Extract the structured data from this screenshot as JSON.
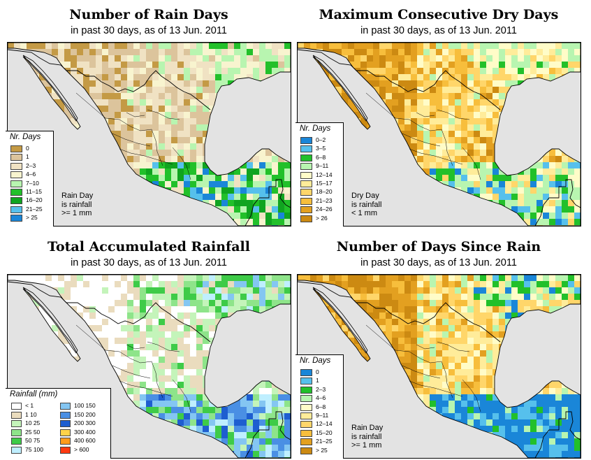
{
  "panels": [
    {
      "id": "rain-days",
      "title": "Number of Rain Days",
      "subtitle": "in past 30 days, as of  13 Jun. 2011",
      "map_style": "rain-days",
      "legend": {
        "title": "Nr. Days",
        "items": [
          {
            "label": "0",
            "color": "#c49a45"
          },
          {
            "label": "1",
            "color": "#dcc49c"
          },
          {
            "label": "2–3",
            "color": "#f0e2c3"
          },
          {
            "label": "4–6",
            "color": "#f8f4cf"
          },
          {
            "label": "7–10",
            "color": "#b8f5b0"
          },
          {
            "label": "11–15",
            "color": "#22c02a"
          },
          {
            "label": "16–20",
            "color": "#10a420"
          },
          {
            "label": "21–25",
            "color": "#56c0ec"
          },
          {
            "label": "> 25",
            "color": "#1a86d8"
          }
        ]
      },
      "note": [
        "Rain Day",
        "is rainfall",
        ">= 1 mm"
      ]
    },
    {
      "id": "max-dry-days",
      "title": "Maximum Consecutive Dry Days",
      "subtitle": "in past 30 days, as of  13 Jun. 2011",
      "map_style": "dry-days",
      "legend": {
        "title": "Nr. Days",
        "items": [
          {
            "label": "0–2",
            "color": "#1a86d8"
          },
          {
            "label": "3–5",
            "color": "#56c0ec"
          },
          {
            "label": "6–8",
            "color": "#22c02a"
          },
          {
            "label": "9–11",
            "color": "#b8f5b0"
          },
          {
            "label": "12–14",
            "color": "#fffcc8"
          },
          {
            "label": "15–17",
            "color": "#ffec9a"
          },
          {
            "label": "18–20",
            "color": "#ffd66a"
          },
          {
            "label": "21–23",
            "color": "#f7be3c"
          },
          {
            "label": "24–26",
            "color": "#e3a020"
          },
          {
            "label": "> 26",
            "color": "#cc8a12"
          }
        ]
      },
      "note": [
        "Dry Day",
        "is rainfall",
        "< 1 mm"
      ]
    },
    {
      "id": "total-rainfall",
      "title": "Total Accumulated Rainfall",
      "subtitle": "in past 30 days, as of  13 Jun. 2011",
      "map_style": "rainfall",
      "legend": {
        "title": "Rainfall (mm)",
        "left": [
          {
            "label": "< 1",
            "color": "#ffffff"
          },
          {
            "label": "1    10",
            "color": "#eadcbe"
          },
          {
            "label": "10    25",
            "color": "#c4f4ba"
          },
          {
            "label": "25    50",
            "color": "#8ee48a"
          },
          {
            "label": "50    75",
            "color": "#3ecb48"
          },
          {
            "label": "75  100",
            "color": "#bfefff"
          }
        ],
        "right": [
          {
            "label": "100  150",
            "color": "#84c6f2"
          },
          {
            "label": "150  200",
            "color": "#4a8fe4"
          },
          {
            "label": "200  300",
            "color": "#1e5ed0"
          },
          {
            "label": "300  400",
            "color": "#ffd34a"
          },
          {
            "label": "400  600",
            "color": "#ff9c1c"
          },
          {
            "label": "> 600",
            "color": "#ff3a10"
          }
        ]
      },
      "note": []
    },
    {
      "id": "days-since-rain",
      "title": "Number of Days Since Rain",
      "subtitle": "in past 30 days, as of  13 Jun. 2011",
      "map_style": "since-rain",
      "legend": {
        "title": "Nr. Days",
        "items": [
          {
            "label": "0",
            "color": "#1a86d8"
          },
          {
            "label": "1",
            "color": "#56c0ec"
          },
          {
            "label": "2–3",
            "color": "#22c02a"
          },
          {
            "label": "4–6",
            "color": "#b8f5b0"
          },
          {
            "label": "6–8",
            "color": "#fffcc8"
          },
          {
            "label": "9–11",
            "color": "#ffec9a"
          },
          {
            "label": "12–14",
            "color": "#ffd66a"
          },
          {
            "label": "15–20",
            "color": "#f7be3c"
          },
          {
            "label": "21–25",
            "color": "#e3a020"
          },
          {
            "label": "> 25",
            "color": "#cc8a12"
          }
        ]
      },
      "note": [
        "Rain Day",
        "is rainfall",
        ">= 1 mm"
      ]
    }
  ]
}
